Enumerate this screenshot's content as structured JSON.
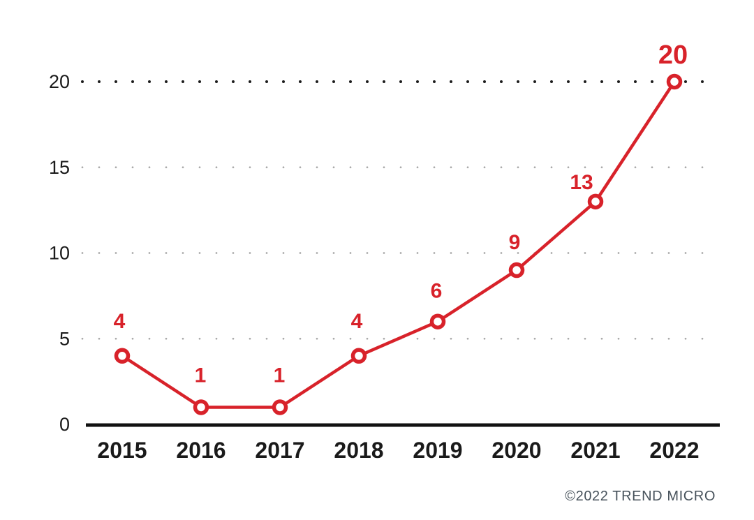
{
  "chart_data": {
    "type": "line",
    "title": "",
    "xlabel": "",
    "ylabel": "",
    "categories": [
      "2015",
      "2016",
      "2017",
      "2018",
      "2019",
      "2020",
      "2021",
      "2022"
    ],
    "values": [
      4,
      1,
      1,
      4,
      6,
      9,
      13,
      20
    ],
    "yticks": [
      0,
      5,
      10,
      15,
      20
    ],
    "ylim": [
      0,
      20
    ],
    "grid": "dotted-horizontal",
    "legend_position": "none",
    "marker": "open-circle",
    "data_labels_shown": true
  },
  "footer": {
    "attribution": "©2022 TREND MICRO"
  },
  "colors": {
    "line": "#D8222A",
    "marker_fill": "#FFFFFF",
    "data_label": "#D8222A",
    "axis": "#111111",
    "tick_text": "#1A1A1A",
    "grid_dot": "#A9A9A9",
    "grid_dot_top": "#1C1C1C",
    "attribution": "#47525B",
    "background": "#FFFFFF"
  }
}
